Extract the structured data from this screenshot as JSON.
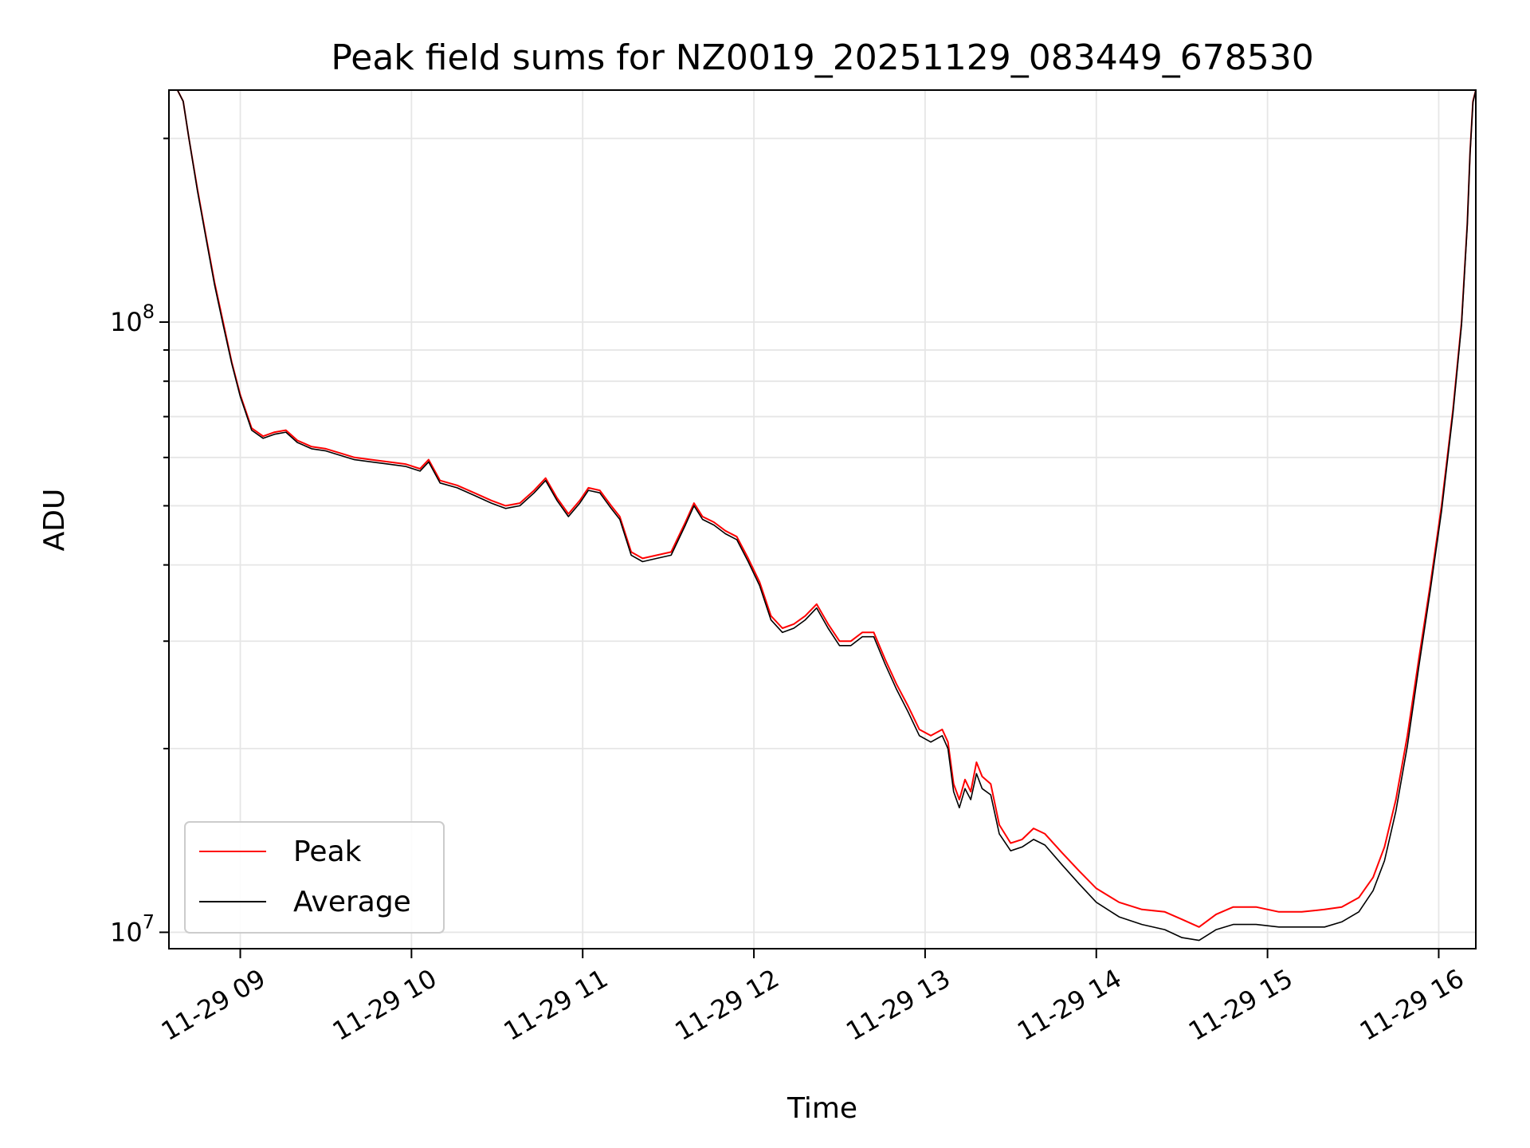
{
  "chart_data": {
    "type": "line",
    "title": "Peak field sums for NZ0019_20251129_083449_678530",
    "xlabel": "Time",
    "ylabel": "ADU",
    "yscale": "log",
    "grid": true,
    "legend_position": "lower-left",
    "x_ticks": [
      "11-29 09",
      "11-29 10",
      "11-29 11",
      "11-29 12",
      "11-29 13",
      "11-29 14",
      "11-29 15",
      "11-29 16"
    ],
    "y_ticks": [
      {
        "value": 10000000,
        "base": "10",
        "exp": "7"
      },
      {
        "value": 100000000,
        "base": "10",
        "exp": "8"
      }
    ],
    "xlim": [
      "2025-11-29 08:35",
      "2025-11-29 16:13"
    ],
    "ylim": [
      9400000,
      240000000
    ],
    "series": [
      {
        "name": "Peak",
        "color": "#ff0000",
        "points": [
          [
            "2025-11-29 08:35",
            240000000
          ],
          [
            "2025-11-29 08:38",
            240000000
          ],
          [
            "2025-11-29 08:40",
            230000000
          ],
          [
            "2025-11-29 08:42",
            200000000
          ],
          [
            "2025-11-29 08:45",
            165000000
          ],
          [
            "2025-11-29 08:48",
            138000000
          ],
          [
            "2025-11-29 08:51",
            116000000
          ],
          [
            "2025-11-29 08:54",
            100000000
          ],
          [
            "2025-11-29 08:57",
            86000000
          ],
          [
            "2025-11-29 09:00",
            76000000
          ],
          [
            "2025-11-29 09:04",
            67000000
          ],
          [
            "2025-11-29 09:08",
            65000000
          ],
          [
            "2025-11-29 09:12",
            66000000
          ],
          [
            "2025-11-29 09:16",
            66500000
          ],
          [
            "2025-11-29 09:20",
            64000000
          ],
          [
            "2025-11-29 09:25",
            62500000
          ],
          [
            "2025-11-29 09:30",
            62000000
          ],
          [
            "2025-11-29 09:35",
            61000000
          ],
          [
            "2025-11-29 09:40",
            60000000
          ],
          [
            "2025-11-29 09:46",
            59500000
          ],
          [
            "2025-11-29 09:52",
            59000000
          ],
          [
            "2025-11-29 09:58",
            58500000
          ],
          [
            "2025-11-29 10:03",
            57500000
          ],
          [
            "2025-11-29 10:06",
            59500000
          ],
          [
            "2025-11-29 10:10",
            55000000
          ],
          [
            "2025-11-29 10:16",
            54000000
          ],
          [
            "2025-11-29 10:22",
            52500000
          ],
          [
            "2025-11-29 10:28",
            51000000
          ],
          [
            "2025-11-29 10:33",
            50000000
          ],
          [
            "2025-11-29 10:38",
            50500000
          ],
          [
            "2025-11-29 10:43",
            53000000
          ],
          [
            "2025-11-29 10:47",
            55500000
          ],
          [
            "2025-11-29 10:51",
            51500000
          ],
          [
            "2025-11-29 10:55",
            48500000
          ],
          [
            "2025-11-29 10:59",
            51000000
          ],
          [
            "2025-11-29 11:02",
            53500000
          ],
          [
            "2025-11-29 11:06",
            53000000
          ],
          [
            "2025-11-29 11:10",
            50000000
          ],
          [
            "2025-11-29 11:13",
            48000000
          ],
          [
            "2025-11-29 11:17",
            42000000
          ],
          [
            "2025-11-29 11:21",
            41000000
          ],
          [
            "2025-11-29 11:26",
            41500000
          ],
          [
            "2025-11-29 11:31",
            42000000
          ],
          [
            "2025-11-29 11:36",
            47000000
          ],
          [
            "2025-11-29 11:39",
            50500000
          ],
          [
            "2025-11-29 11:42",
            48000000
          ],
          [
            "2025-11-29 11:46",
            47000000
          ],
          [
            "2025-11-29 11:50",
            45500000
          ],
          [
            "2025-11-29 11:54",
            44500000
          ],
          [
            "2025-11-29 11:58",
            41000000
          ],
          [
            "2025-11-29 12:02",
            37500000
          ],
          [
            "2025-11-29 12:06",
            33000000
          ],
          [
            "2025-11-29 12:10",
            31500000
          ],
          [
            "2025-11-29 12:14",
            32000000
          ],
          [
            "2025-11-29 12:18",
            33000000
          ],
          [
            "2025-11-29 12:22",
            34500000
          ],
          [
            "2025-11-29 12:26",
            32000000
          ],
          [
            "2025-11-29 12:30",
            30000000
          ],
          [
            "2025-11-29 12:34",
            30000000
          ],
          [
            "2025-11-29 12:38",
            31000000
          ],
          [
            "2025-11-29 12:42",
            31000000
          ],
          [
            "2025-11-29 12:46",
            28000000
          ],
          [
            "2025-11-29 12:50",
            25500000
          ],
          [
            "2025-11-29 12:54",
            23500000
          ],
          [
            "2025-11-29 12:58",
            21500000
          ],
          [
            "2025-11-29 13:02",
            21000000
          ],
          [
            "2025-11-29 13:06",
            21500000
          ],
          [
            "2025-11-29 13:08",
            20500000
          ],
          [
            "2025-11-29 13:10",
            17500000
          ],
          [
            "2025-11-29 13:12",
            16500000
          ],
          [
            "2025-11-29 13:14",
            17800000
          ],
          [
            "2025-11-29 13:16",
            17000000
          ],
          [
            "2025-11-29 13:18",
            19000000
          ],
          [
            "2025-11-29 13:20",
            18000000
          ],
          [
            "2025-11-29 13:23",
            17500000
          ],
          [
            "2025-11-29 13:26",
            15000000
          ],
          [
            "2025-11-29 13:30",
            14000000
          ],
          [
            "2025-11-29 13:34",
            14200000
          ],
          [
            "2025-11-29 13:38",
            14800000
          ],
          [
            "2025-11-29 13:42",
            14500000
          ],
          [
            "2025-11-29 13:48",
            13500000
          ],
          [
            "2025-11-29 13:54",
            12600000
          ],
          [
            "2025-11-29 14:00",
            11800000
          ],
          [
            "2025-11-29 14:08",
            11200000
          ],
          [
            "2025-11-29 14:16",
            10900000
          ],
          [
            "2025-11-29 14:24",
            10800000
          ],
          [
            "2025-11-29 14:30",
            10500000
          ],
          [
            "2025-11-29 14:36",
            10200000
          ],
          [
            "2025-11-29 14:42",
            10700000
          ],
          [
            "2025-11-29 14:48",
            11000000
          ],
          [
            "2025-11-29 14:56",
            11000000
          ],
          [
            "2025-11-29 15:04",
            10800000
          ],
          [
            "2025-11-29 15:12",
            10800000
          ],
          [
            "2025-11-29 15:20",
            10900000
          ],
          [
            "2025-11-29 15:26",
            11000000
          ],
          [
            "2025-11-29 15:32",
            11400000
          ],
          [
            "2025-11-29 15:37",
            12300000
          ],
          [
            "2025-11-29 15:41",
            13800000
          ],
          [
            "2025-11-29 15:45",
            16500000
          ],
          [
            "2025-11-29 15:49",
            21000000
          ],
          [
            "2025-11-29 15:53",
            28000000
          ],
          [
            "2025-11-29 15:57",
            37000000
          ],
          [
            "2025-11-29 16:01",
            50000000
          ],
          [
            "2025-11-29 16:05",
            72000000
          ],
          [
            "2025-11-29 16:08",
            100000000
          ],
          [
            "2025-11-29 16:10",
            145000000
          ],
          [
            "2025-11-29 16:11",
            190000000
          ],
          [
            "2025-11-29 16:12",
            230000000
          ],
          [
            "2025-11-29 16:13",
            240000000
          ]
        ]
      },
      {
        "name": "Average",
        "color": "#000000",
        "points": [
          [
            "2025-11-29 08:35",
            240000000
          ],
          [
            "2025-11-29 08:38",
            240000000
          ],
          [
            "2025-11-29 08:40",
            230000000
          ],
          [
            "2025-11-29 08:42",
            200000000
          ],
          [
            "2025-11-29 08:45",
            164000000
          ],
          [
            "2025-11-29 08:48",
            137000000
          ],
          [
            "2025-11-29 08:51",
            115000000
          ],
          [
            "2025-11-29 08:54",
            99000000
          ],
          [
            "2025-11-29 08:57",
            85500000
          ],
          [
            "2025-11-29 09:00",
            75500000
          ],
          [
            "2025-11-29 09:04",
            66500000
          ],
          [
            "2025-11-29 09:08",
            64500000
          ],
          [
            "2025-11-29 09:12",
            65500000
          ],
          [
            "2025-11-29 09:16",
            66000000
          ],
          [
            "2025-11-29 09:20",
            63500000
          ],
          [
            "2025-11-29 09:25",
            62000000
          ],
          [
            "2025-11-29 09:30",
            61500000
          ],
          [
            "2025-11-29 09:35",
            60500000
          ],
          [
            "2025-11-29 09:40",
            59500000
          ],
          [
            "2025-11-29 09:46",
            59000000
          ],
          [
            "2025-11-29 09:52",
            58500000
          ],
          [
            "2025-11-29 09:58",
            58000000
          ],
          [
            "2025-11-29 10:03",
            57000000
          ],
          [
            "2025-11-29 10:06",
            59000000
          ],
          [
            "2025-11-29 10:10",
            54500000
          ],
          [
            "2025-11-29 10:16",
            53500000
          ],
          [
            "2025-11-29 10:22",
            52000000
          ],
          [
            "2025-11-29 10:28",
            50500000
          ],
          [
            "2025-11-29 10:33",
            49500000
          ],
          [
            "2025-11-29 10:38",
            50000000
          ],
          [
            "2025-11-29 10:43",
            52500000
          ],
          [
            "2025-11-29 10:47",
            55000000
          ],
          [
            "2025-11-29 10:51",
            51000000
          ],
          [
            "2025-11-29 10:55",
            48000000
          ],
          [
            "2025-11-29 10:59",
            50500000
          ],
          [
            "2025-11-29 11:02",
            53000000
          ],
          [
            "2025-11-29 11:06",
            52500000
          ],
          [
            "2025-11-29 11:10",
            49500000
          ],
          [
            "2025-11-29 11:13",
            47500000
          ],
          [
            "2025-11-29 11:17",
            41500000
          ],
          [
            "2025-11-29 11:21",
            40500000
          ],
          [
            "2025-11-29 11:26",
            41000000
          ],
          [
            "2025-11-29 11:31",
            41500000
          ],
          [
            "2025-11-29 11:36",
            46500000
          ],
          [
            "2025-11-29 11:39",
            50000000
          ],
          [
            "2025-11-29 11:42",
            47500000
          ],
          [
            "2025-11-29 11:46",
            46500000
          ],
          [
            "2025-11-29 11:50",
            45000000
          ],
          [
            "2025-11-29 11:54",
            44000000
          ],
          [
            "2025-11-29 11:58",
            40500000
          ],
          [
            "2025-11-29 12:02",
            37000000
          ],
          [
            "2025-11-29 12:06",
            32500000
          ],
          [
            "2025-11-29 12:10",
            31000000
          ],
          [
            "2025-11-29 12:14",
            31500000
          ],
          [
            "2025-11-29 12:18",
            32500000
          ],
          [
            "2025-11-29 12:22",
            34000000
          ],
          [
            "2025-11-29 12:26",
            31500000
          ],
          [
            "2025-11-29 12:30",
            29500000
          ],
          [
            "2025-11-29 12:34",
            29500000
          ],
          [
            "2025-11-29 12:38",
            30500000
          ],
          [
            "2025-11-29 12:42",
            30500000
          ],
          [
            "2025-11-29 12:46",
            27500000
          ],
          [
            "2025-11-29 12:50",
            25000000
          ],
          [
            "2025-11-29 12:54",
            23000000
          ],
          [
            "2025-11-29 12:58",
            21000000
          ],
          [
            "2025-11-29 13:02",
            20500000
          ],
          [
            "2025-11-29 13:06",
            21000000
          ],
          [
            "2025-11-29 13:08",
            20000000
          ],
          [
            "2025-11-29 13:10",
            17000000
          ],
          [
            "2025-11-29 13:12",
            16000000
          ],
          [
            "2025-11-29 13:14",
            17200000
          ],
          [
            "2025-11-29 13:16",
            16500000
          ],
          [
            "2025-11-29 13:18",
            18200000
          ],
          [
            "2025-11-29 13:20",
            17200000
          ],
          [
            "2025-11-29 13:23",
            16800000
          ],
          [
            "2025-11-29 13:26",
            14500000
          ],
          [
            "2025-11-29 13:30",
            13600000
          ],
          [
            "2025-11-29 13:34",
            13800000
          ],
          [
            "2025-11-29 13:38",
            14200000
          ],
          [
            "2025-11-29 13:42",
            13900000
          ],
          [
            "2025-11-29 13:48",
            12900000
          ],
          [
            "2025-11-29 13:54",
            12000000
          ],
          [
            "2025-11-29 14:00",
            11200000
          ],
          [
            "2025-11-29 14:08",
            10600000
          ],
          [
            "2025-11-29 14:16",
            10300000
          ],
          [
            "2025-11-29 14:24",
            10100000
          ],
          [
            "2025-11-29 14:30",
            9800000
          ],
          [
            "2025-11-29 14:36",
            9700000
          ],
          [
            "2025-11-29 14:42",
            10100000
          ],
          [
            "2025-11-29 14:48",
            10300000
          ],
          [
            "2025-11-29 14:56",
            10300000
          ],
          [
            "2025-11-29 15:04",
            10200000
          ],
          [
            "2025-11-29 15:12",
            10200000
          ],
          [
            "2025-11-29 15:20",
            10200000
          ],
          [
            "2025-11-29 15:26",
            10400000
          ],
          [
            "2025-11-29 15:32",
            10800000
          ],
          [
            "2025-11-29 15:37",
            11700000
          ],
          [
            "2025-11-29 15:41",
            13100000
          ],
          [
            "2025-11-29 15:45",
            15800000
          ],
          [
            "2025-11-29 15:49",
            20200000
          ],
          [
            "2025-11-29 15:53",
            27200000
          ],
          [
            "2025-11-29 15:57",
            36200000
          ],
          [
            "2025-11-29 16:01",
            49000000
          ],
          [
            "2025-11-29 16:05",
            71000000
          ],
          [
            "2025-11-29 16:08",
            99000000
          ],
          [
            "2025-11-29 16:10",
            144000000
          ],
          [
            "2025-11-29 16:11",
            189000000
          ],
          [
            "2025-11-29 16:12",
            229000000
          ],
          [
            "2025-11-29 16:13",
            240000000
          ]
        ]
      }
    ]
  }
}
